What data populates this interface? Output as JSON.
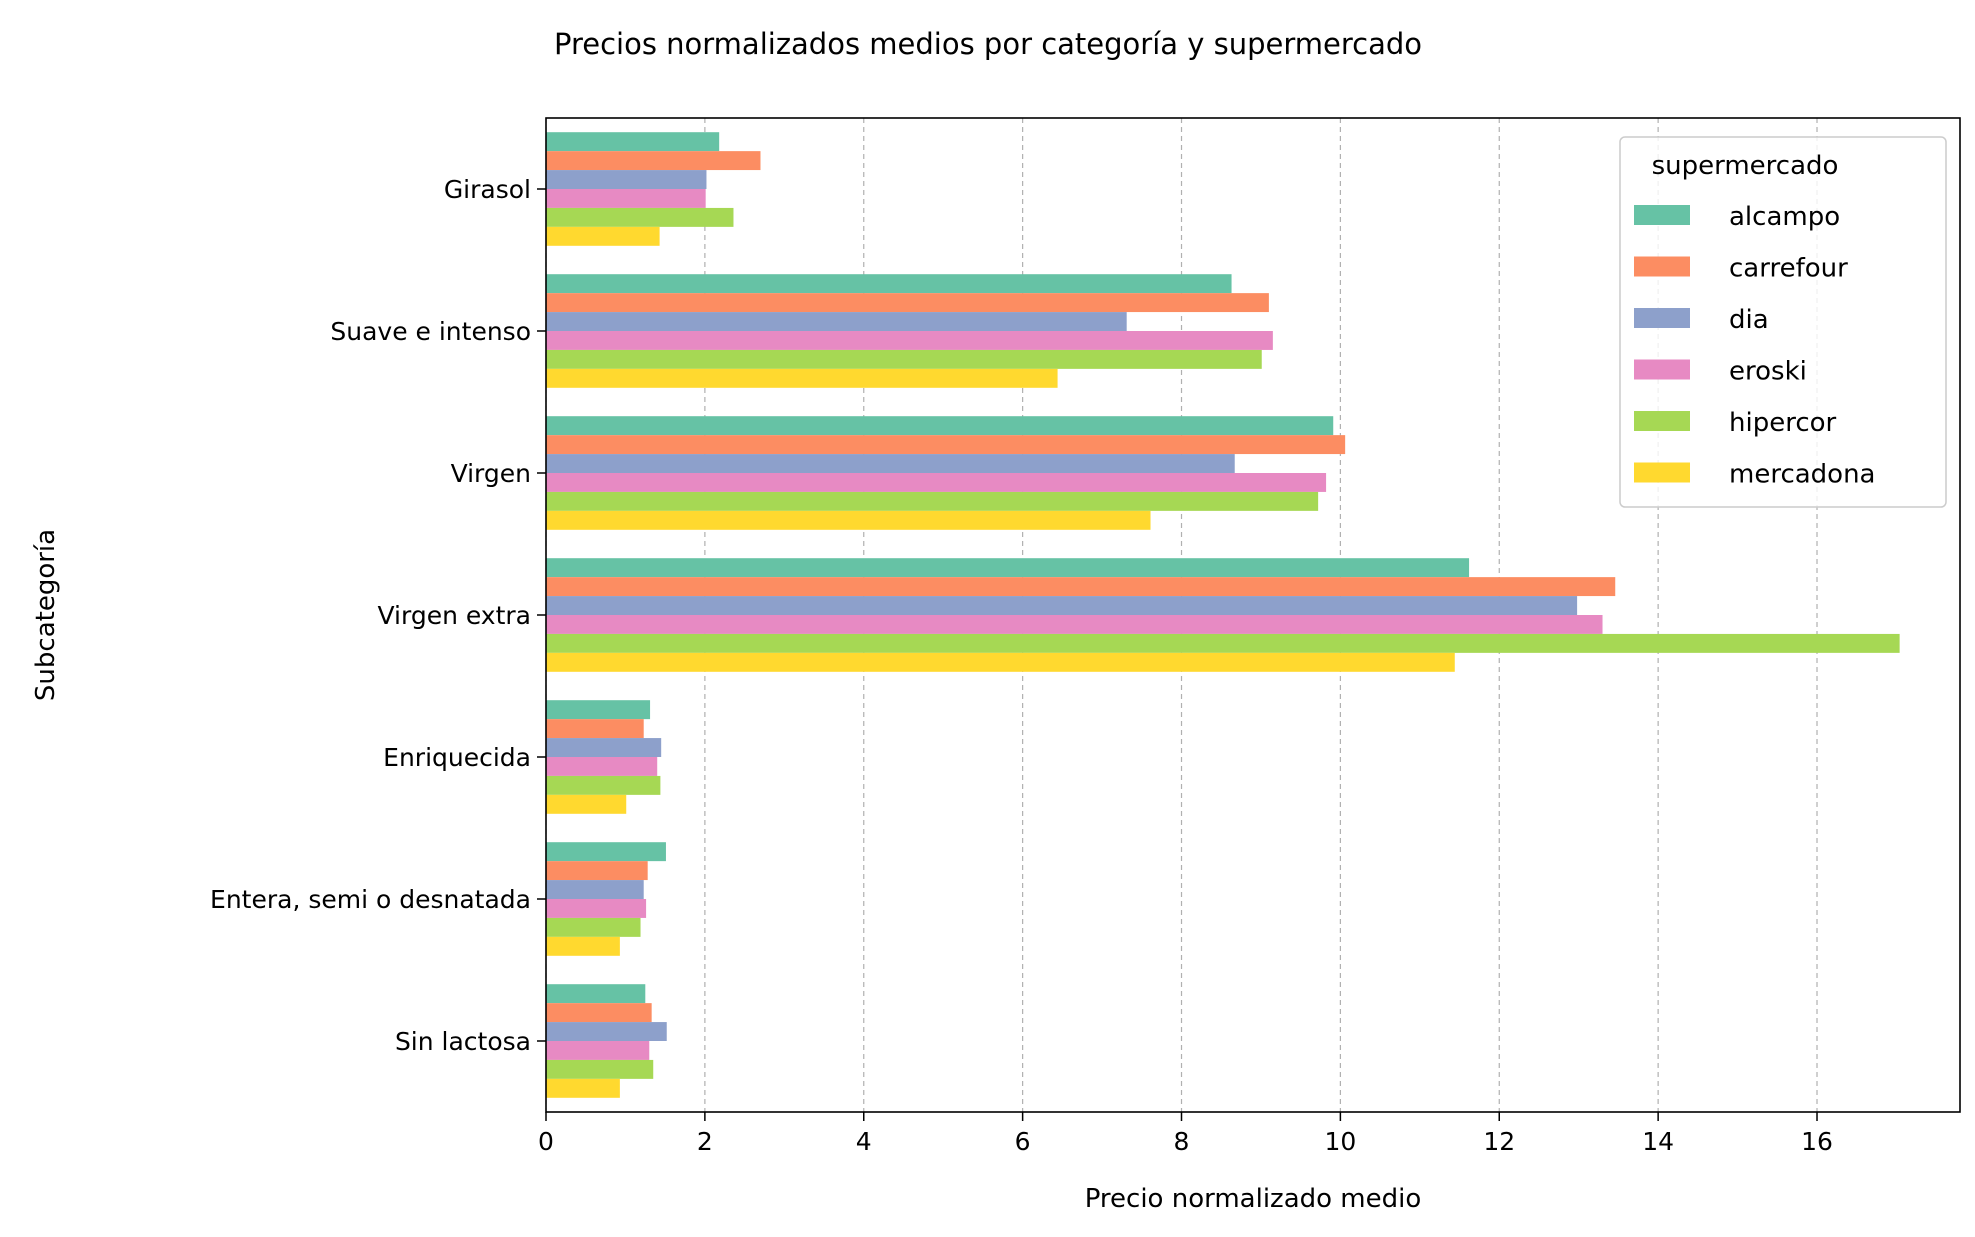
{
  "chart_data": {
    "type": "bar",
    "orientation": "horizontal",
    "title": "Precios normalizados medios por categoría y supermercado",
    "xlabel": "Precio normalizado medio",
    "ylabel": "Subcategoría",
    "xlim": [
      0,
      17.8
    ],
    "xticks": [
      0,
      2,
      4,
      6,
      8,
      10,
      12,
      14,
      16
    ],
    "grid": "x dashed",
    "legend": {
      "title": "supermercado",
      "placement": "top-right"
    },
    "categories": [
      "Girasol",
      "Suave e intenso",
      "Virgen",
      "Virgen extra",
      "Enriquecida",
      "Entera, semi o desnatada",
      "Sin lactosa"
    ],
    "series": [
      {
        "name": "alcampo",
        "color": "#66c2a5",
        "values": [
          2.18,
          8.63,
          9.91,
          11.62,
          1.31,
          1.51,
          1.25
        ]
      },
      {
        "name": "carrefour",
        "color": "#fc8d62",
        "values": [
          2.7,
          9.1,
          10.06,
          13.46,
          1.23,
          1.28,
          1.33
        ]
      },
      {
        "name": "dia",
        "color": "#8da0cb",
        "values": [
          2.02,
          7.31,
          8.67,
          12.98,
          1.45,
          1.23,
          1.52
        ]
      },
      {
        "name": "eroski",
        "color": "#e78ac3",
        "values": [
          2.01,
          9.15,
          9.82,
          13.3,
          1.4,
          1.26,
          1.3
        ]
      },
      {
        "name": "hipercor",
        "color": "#a6d854",
        "values": [
          2.36,
          9.01,
          9.72,
          17.04,
          1.44,
          1.19,
          1.35
        ]
      },
      {
        "name": "mercadona",
        "color": "#ffd92f",
        "values": [
          1.43,
          6.44,
          7.61,
          11.44,
          1.01,
          0.93,
          0.93
        ]
      }
    ]
  }
}
